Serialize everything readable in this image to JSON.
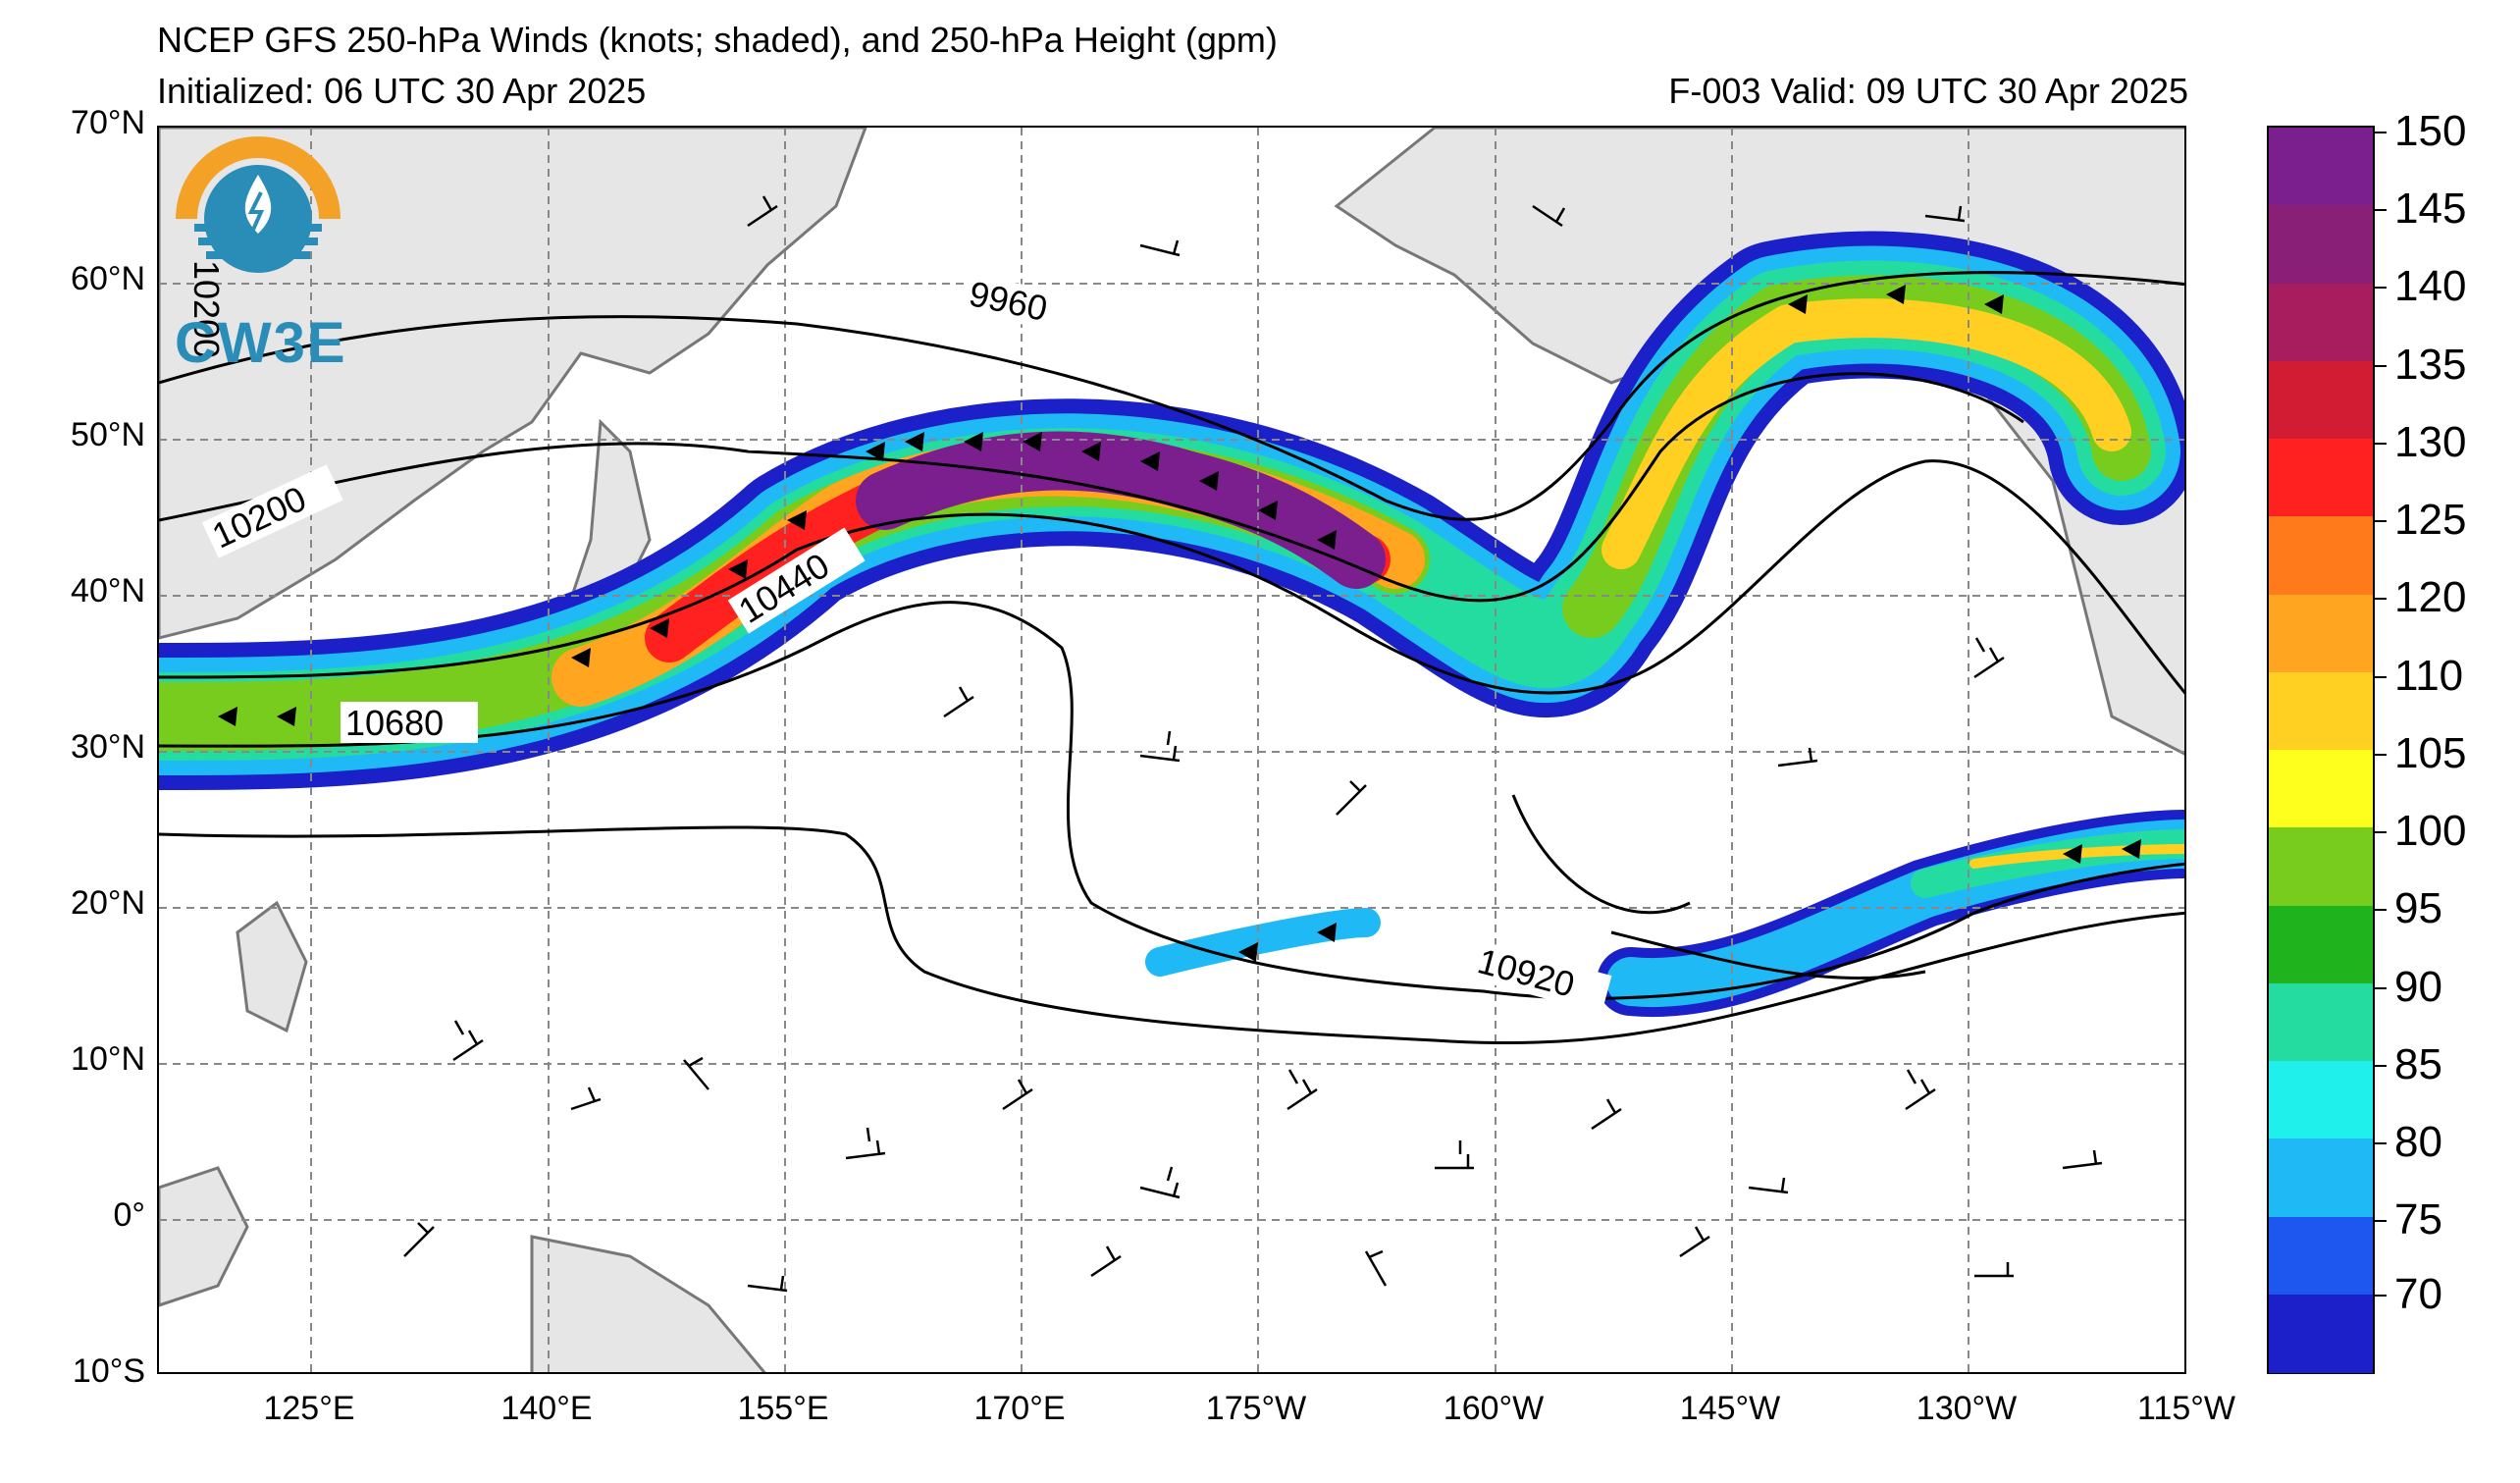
{
  "titles": {
    "line1": "NCEP GFS 250-hPa Winds (knots; shaded), and 250-hPa Height (gpm)",
    "line2_left": "Initialized: 06 UTC 30 Apr 2025",
    "line2_right": "F-003  Valid: 09 UTC 30 Apr 2025"
  },
  "logo": {
    "text": "CW3E",
    "icon": "cw3e-logo-icon"
  },
  "lat_labels": [
    "70°N",
    "60°N",
    "50°N",
    "40°N",
    "30°N",
    "20°N",
    "10°N",
    "0°",
    "10°S"
  ],
  "lon_labels": [
    "125°E",
    "140°E",
    "155°E",
    "170°E",
    "175°W",
    "160°W",
    "145°W",
    "130°W",
    "115°W"
  ],
  "contour_labels": [
    "9960",
    "10200",
    "10440",
    "10680",
    "10920",
    "10200"
  ],
  "colorbar": {
    "labels": [
      "150",
      "145",
      "140",
      "135",
      "130",
      "125",
      "120",
      "110",
      "105",
      "100",
      "95",
      "90",
      "85",
      "80",
      "75",
      "70"
    ],
    "colors": [
      "#7b1f8f",
      "#8a1f78",
      "#a81d5e",
      "#d21c33",
      "#ff2020",
      "#ff7a1a",
      "#ffa51f",
      "#ffcf22",
      "#ffff1e",
      "#78cc1e",
      "#1fb41e",
      "#25dca0",
      "#1ff0ec",
      "#1fbaf5",
      "#1e56f0",
      "#1b20c8"
    ]
  }
}
